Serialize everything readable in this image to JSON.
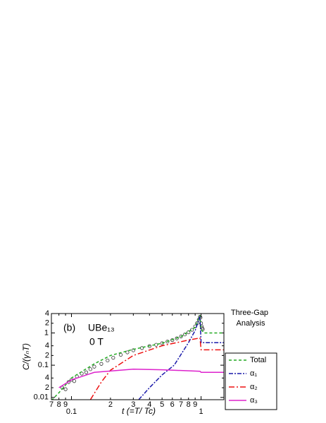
{
  "chart_data": {
    "type": "line",
    "annotations": [
      "(b)",
      "UBe₁₃",
      "0 T"
    ],
    "legend_title": "Three-Gap Analysis",
    "xlabel": "t (=T/ Tc)",
    "ylabel": "C/(γₙT)",
    "xscale": "log",
    "yscale": "log",
    "legend": "right",
    "xlim": [
      0.07,
      1.5
    ],
    "ylim": [
      0.0085,
      4
    ],
    "xticks": [
      {
        "value": 0.07,
        "label": "7"
      },
      {
        "value": 0.08,
        "label": "8"
      },
      {
        "value": 0.09,
        "label": "9"
      },
      0.1,
      {
        "value": 0.2,
        "label": "2"
      },
      {
        "value": 0.3,
        "label": "3"
      },
      {
        "value": 0.4,
        "label": "4"
      },
      {
        "value": 0.5,
        "label": "5"
      },
      {
        "value": 0.6,
        "label": "6"
      },
      {
        "value": 0.7,
        "label": "7"
      },
      {
        "value": 0.8,
        "label": "8"
      },
      {
        "value": 0.9,
        "label": "9"
      },
      1
    ],
    "yticks": [
      0.01,
      {
        "value": 0.02,
        "label": "2"
      },
      {
        "value": 0.04,
        "label": "4"
      },
      0.1,
      {
        "value": 0.2,
        "label": "2"
      },
      {
        "value": 0.4,
        "label": "4"
      },
      1,
      {
        "value": 2,
        "label": "2"
      },
      {
        "value": 4,
        "label": "4"
      }
    ],
    "data_points": {
      "color": "#333333",
      "x": [
        0.085,
        0.09,
        0.095,
        0.1,
        0.105,
        0.11,
        0.12,
        0.13,
        0.14,
        0.15,
        0.17,
        0.19,
        0.21,
        0.24,
        0.27,
        0.3,
        0.35,
        0.4,
        0.45,
        0.5,
        0.55,
        0.6,
        0.65,
        0.7,
        0.75,
        0.8,
        0.85,
        0.9,
        0.93,
        0.96,
        0.98,
        0.99,
        1.0,
        1.01,
        1.02,
        1.03
      ],
      "y": [
        0.02,
        0.018,
        0.03,
        0.035,
        0.032,
        0.045,
        0.055,
        0.06,
        0.075,
        0.09,
        0.11,
        0.14,
        0.17,
        0.21,
        0.25,
        0.29,
        0.34,
        0.39,
        0.43,
        0.48,
        0.54,
        0.6,
        0.68,
        0.78,
        0.9,
        1.05,
        1.25,
        1.6,
        2.0,
        2.6,
        3.2,
        3.0,
        2.0,
        1.6,
        1.4,
        1.3
      ]
    },
    "series": [
      {
        "name": "Total",
        "color": "#22aa22",
        "dash": "4,3",
        "x": [
          0.07,
          0.08,
          0.1,
          0.15,
          0.2,
          0.3,
          0.5,
          0.7,
          0.9,
          0.98,
          1.0,
          1.05,
          1.5
        ],
        "values": [
          0.008,
          0.014,
          0.04,
          0.11,
          0.2,
          0.31,
          0.48,
          0.77,
          1.5,
          3.5,
          1.3,
          1.0,
          1.0
        ]
      },
      {
        "name": "α₁",
        "color": "#1a1aaa",
        "dash": "6,2,2,2",
        "x": [
          0.33,
          0.4,
          0.5,
          0.62,
          0.8,
          0.9,
          0.98,
          1.0,
          1.5
        ],
        "values": [
          0.0085,
          0.02,
          0.05,
          0.1,
          0.5,
          1.2,
          3.2,
          0.5,
          0.5
        ]
      },
      {
        "name": "α₂",
        "color": "#ee1111",
        "dash": "8,3,2,3",
        "x": [
          0.14,
          0.17,
          0.2,
          0.3,
          0.5,
          0.8,
          0.98,
          1.0,
          1.5
        ],
        "values": [
          0.0085,
          0.03,
          0.07,
          0.2,
          0.4,
          0.6,
          0.7,
          0.3,
          0.3
        ]
      },
      {
        "name": "α₃",
        "color": "#dd22cc",
        "dash": "",
        "x": [
          0.08,
          0.1,
          0.15,
          0.3,
          0.5,
          0.98,
          1.0,
          1.5
        ],
        "values": [
          0.02,
          0.035,
          0.06,
          0.075,
          0.072,
          0.065,
          0.06,
          0.06
        ]
      }
    ]
  }
}
